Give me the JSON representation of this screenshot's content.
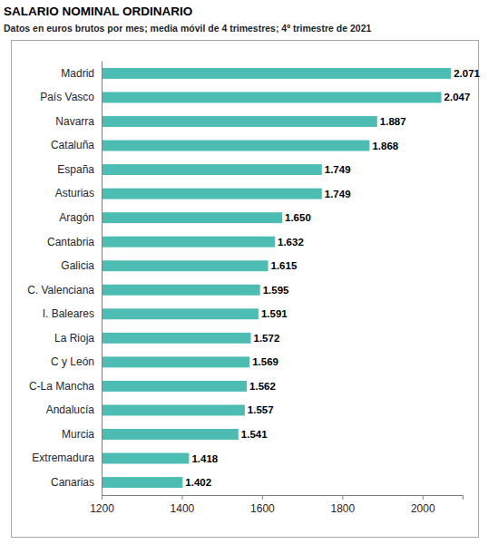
{
  "chart_data": {
    "type": "bar",
    "orientation": "horizontal",
    "title": "SALARIO NOMINAL ORDINARIO",
    "subtitle": "Datos en euros brutos por mes; media móvil de 4 trimestres; 4º trimestre de 2021",
    "categories": [
      "Madrid",
      "País Vasco",
      "Navarra",
      "Cataluña",
      "España",
      "Asturias",
      "Aragón",
      "Cantabria",
      "Galicia",
      "C. Valenciana",
      "I. Baleares",
      "La Rioja",
      "C y León",
      "C-La Mancha",
      "Andalucía",
      "Murcia",
      "Extremadura",
      "Canarias"
    ],
    "values": [
      2071,
      2047,
      1887,
      1868,
      1749,
      1749,
      1650,
      1632,
      1615,
      1595,
      1591,
      1572,
      1569,
      1562,
      1557,
      1541,
      1418,
      1402
    ],
    "value_labels": [
      "2.071",
      "2.047",
      "1.887",
      "1.868",
      "1.749",
      "1.749",
      "1.650",
      "1.632",
      "1.615",
      "1.595",
      "1.591",
      "1.572",
      "1.569",
      "1.562",
      "1.557",
      "1.541",
      "1.418",
      "1.402"
    ],
    "color": "#4dbdb3",
    "xlim": [
      1200,
      2100
    ],
    "xticks": [
      1200,
      1400,
      1600,
      1800,
      2000
    ],
    "grid": false,
    "data_labels": true
  }
}
